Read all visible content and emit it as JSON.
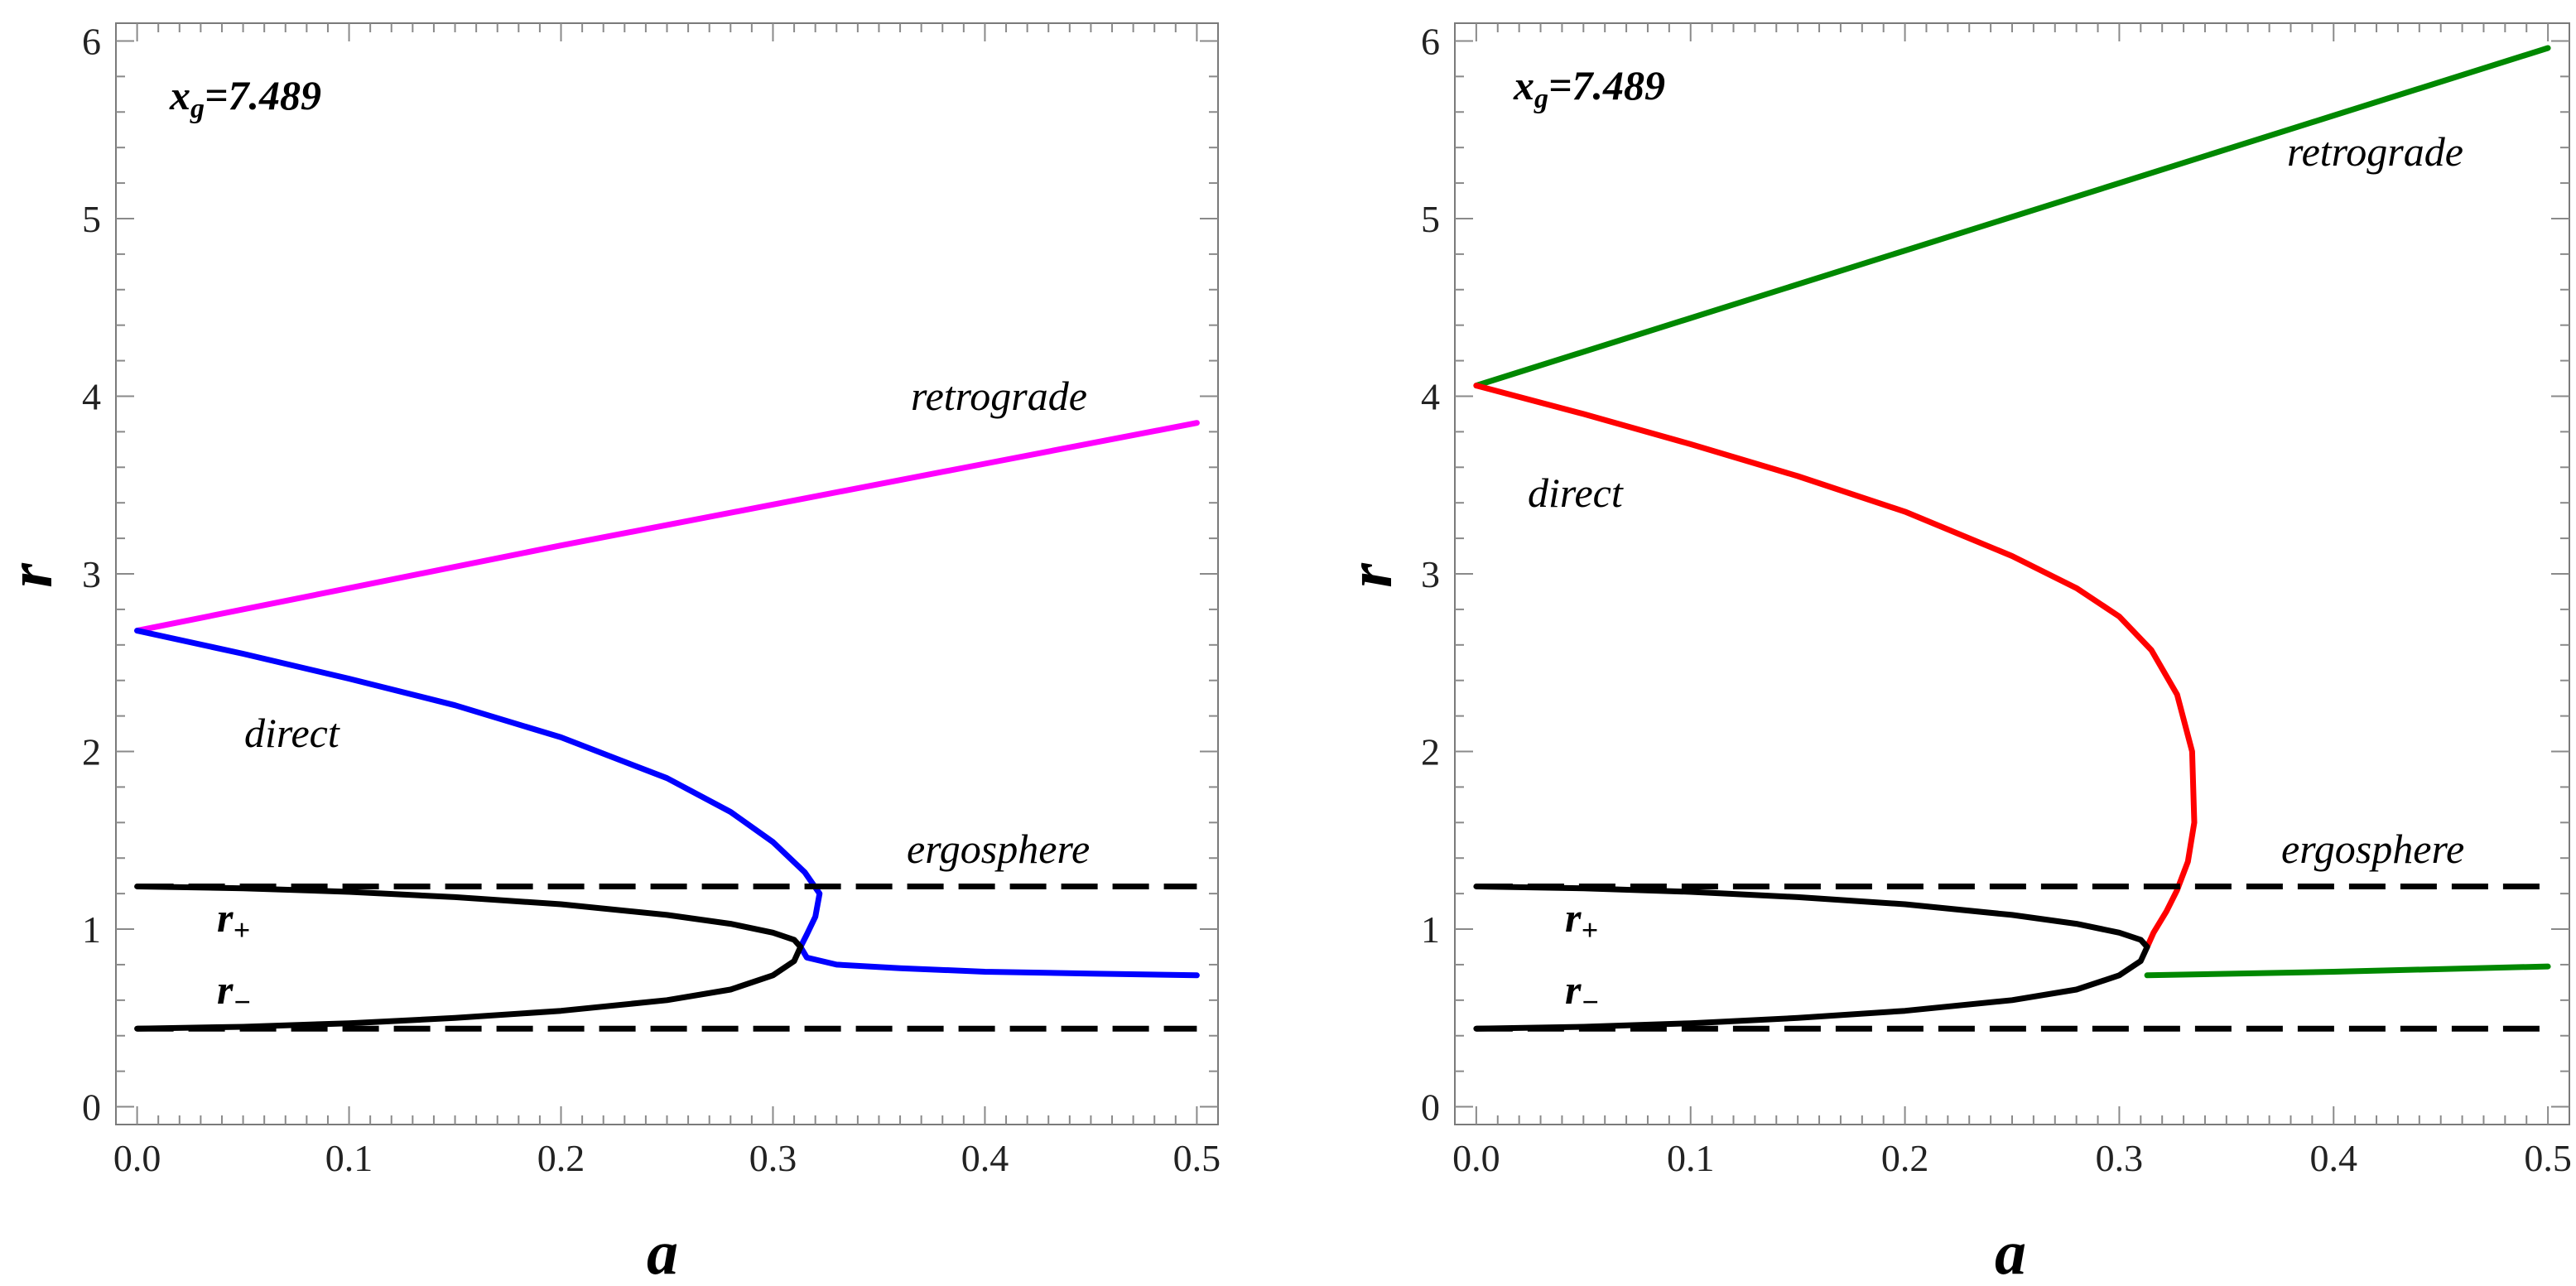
{
  "chart_data": [
    {
      "type": "line",
      "panel": "left",
      "xlabel": "a",
      "ylabel": "r",
      "xlim": [
        -0.01,
        0.51
      ],
      "ylim": [
        -0.1,
        6.1
      ],
      "x_ticks": [
        "0.0",
        "0.1",
        "0.2",
        "0.3",
        "0.4",
        "0.5"
      ],
      "y_ticks": [
        "0",
        "1",
        "2",
        "3",
        "4",
        "5",
        "6"
      ],
      "param": {
        "prefix": "x",
        "sub": "g",
        "value": "=7.489"
      },
      "annotations": {
        "retrograde": "retrograde",
        "direct": "direct",
        "ergosphere": "ergosphere",
        "r_plus": {
          "base": "r",
          "sub": "+"
        },
        "r_minus": {
          "base": "r",
          "sub": "−"
        }
      },
      "colors": {
        "retrograde": "#ff00ff",
        "direct": "#0000ff",
        "horizon": "#000000",
        "ergosphere": "#000000"
      },
      "series": [
        {
          "name": "retrograde",
          "x": [
            0.0,
            0.1,
            0.2,
            0.3,
            0.4,
            0.5
          ],
          "y": [
            2.68,
            2.92,
            3.16,
            3.39,
            3.62,
            3.85
          ]
        },
        {
          "name": "direct",
          "x": [
            0.0,
            0.05,
            0.1,
            0.15,
            0.2,
            0.25,
            0.28,
            0.3,
            0.315,
            0.322,
            0.32,
            0.316,
            0.313,
            0.316,
            0.33,
            0.36,
            0.4,
            0.45,
            0.5
          ],
          "y": [
            2.68,
            2.55,
            2.41,
            2.26,
            2.08,
            1.85,
            1.66,
            1.49,
            1.32,
            1.2,
            1.07,
            0.97,
            0.9,
            0.84,
            0.8,
            0.78,
            0.76,
            0.75,
            0.74
          ]
        },
        {
          "name": "r_plus",
          "x": [
            0.0,
            0.05,
            0.1,
            0.15,
            0.2,
            0.25,
            0.28,
            0.3,
            0.31,
            0.313
          ],
          "y": [
            1.24,
            1.23,
            1.21,
            1.18,
            1.14,
            1.08,
            1.03,
            0.98,
            0.94,
            0.9
          ]
        },
        {
          "name": "r_minus",
          "x": [
            0.0,
            0.05,
            0.1,
            0.15,
            0.2,
            0.25,
            0.28,
            0.3,
            0.31,
            0.313
          ],
          "y": [
            0.44,
            0.45,
            0.47,
            0.5,
            0.54,
            0.6,
            0.66,
            0.74,
            0.82,
            0.9
          ]
        },
        {
          "name": "ergosphere_outer",
          "x": [
            0.0,
            0.5
          ],
          "y": [
            1.24,
            1.24
          ]
        },
        {
          "name": "ergosphere_inner",
          "x": [
            0.0,
            0.5
          ],
          "y": [
            0.44,
            0.44
          ]
        }
      ]
    },
    {
      "type": "line",
      "panel": "right",
      "xlabel": "a",
      "ylabel": "r",
      "xlim": [
        -0.01,
        0.51
      ],
      "ylim": [
        -0.1,
        6.1
      ],
      "x_ticks": [
        "0.0",
        "0.1",
        "0.2",
        "0.3",
        "0.4",
        "0.5"
      ],
      "y_ticks": [
        "0",
        "1",
        "2",
        "3",
        "4",
        "5",
        "6"
      ],
      "param": {
        "prefix": "x",
        "sub": "g",
        "value": "=7.489"
      },
      "annotations": {
        "retrograde": "retrograde",
        "direct": "direct",
        "ergosphere": "ergosphere",
        "r_plus": {
          "base": "r",
          "sub": "+"
        },
        "r_minus": {
          "base": "r",
          "sub": "−"
        }
      },
      "colors": {
        "retrograde": "#008800",
        "direct": "#ff0000",
        "horizon": "#000000",
        "ergosphere": "#000000"
      },
      "series": [
        {
          "name": "retrograde",
          "x": [
            0.0,
            0.1,
            0.2,
            0.3,
            0.4,
            0.5
          ],
          "y": [
            4.06,
            4.44,
            4.82,
            5.2,
            5.58,
            5.96
          ]
        },
        {
          "name": "direct",
          "x": [
            0.0,
            0.05,
            0.1,
            0.15,
            0.2,
            0.25,
            0.28,
            0.3,
            0.315,
            0.327,
            0.334,
            0.335,
            0.332,
            0.327,
            0.322,
            0.316,
            0.313
          ],
          "y": [
            4.06,
            3.9,
            3.73,
            3.55,
            3.35,
            3.1,
            2.92,
            2.76,
            2.57,
            2.32,
            2.0,
            1.6,
            1.38,
            1.22,
            1.1,
            0.98,
            0.9
          ]
        },
        {
          "name": "retrograde_inner",
          "x": [
            0.313,
            0.4,
            0.5
          ],
          "y": [
            0.74,
            0.76,
            0.79
          ]
        },
        {
          "name": "r_plus",
          "x": [
            0.0,
            0.05,
            0.1,
            0.15,
            0.2,
            0.25,
            0.28,
            0.3,
            0.31,
            0.313
          ],
          "y": [
            1.24,
            1.23,
            1.21,
            1.18,
            1.14,
            1.08,
            1.03,
            0.98,
            0.94,
            0.9
          ]
        },
        {
          "name": "r_minus",
          "x": [
            0.0,
            0.05,
            0.1,
            0.15,
            0.2,
            0.25,
            0.28,
            0.3,
            0.31,
            0.313
          ],
          "y": [
            0.44,
            0.45,
            0.47,
            0.5,
            0.54,
            0.6,
            0.66,
            0.74,
            0.82,
            0.9
          ]
        },
        {
          "name": "ergosphere_outer",
          "x": [
            0.0,
            0.5
          ],
          "y": [
            1.24,
            1.24
          ]
        },
        {
          "name": "ergosphere_inner",
          "x": [
            0.0,
            0.5
          ],
          "y": [
            0.44,
            0.44
          ]
        }
      ]
    }
  ]
}
